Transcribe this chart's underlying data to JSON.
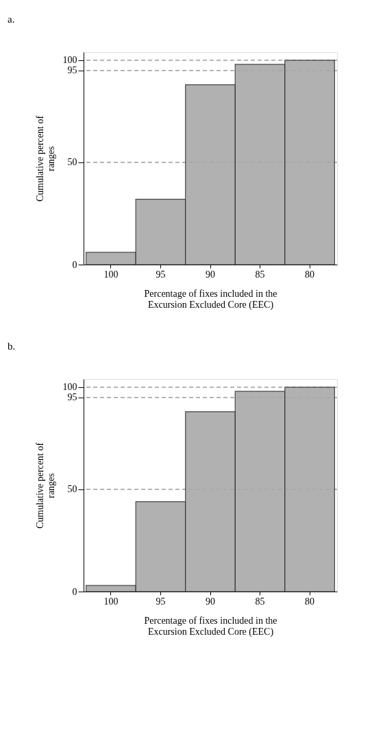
{
  "chart_data": [
    {
      "type": "bar",
      "title": "a.",
      "xlabel": "Percentage of fixes included in the\nExcursion Excluded Core (EEC)",
      "ylabel": "Cumulative percent of\nranges",
      "categories": [
        "100",
        "95",
        "90",
        "85",
        "80"
      ],
      "values": [
        6,
        32,
        88,
        98,
        100
      ],
      "color": "#a9a9a9",
      "ylim": [
        0,
        104
      ],
      "yticks": [
        0,
        50,
        95,
        100
      ],
      "ref_lines": [
        {
          "axis": "y",
          "value": 50,
          "line_style": "dashed",
          "color": "#888888"
        },
        {
          "axis": "y",
          "value": 95,
          "line_style": "dashed",
          "color": "#888888"
        },
        {
          "axis": "y",
          "value": 100,
          "line_style": "dashed",
          "color": "#888888"
        }
      ]
    },
    {
      "type": "bar",
      "title": "b.",
      "xlabel": "Percentage of fixes included in the\nExcursion Excluded Core (EEC)",
      "ylabel": "Cumulative percent of\nranges",
      "categories": [
        "100",
        "95",
        "90",
        "85",
        "80"
      ],
      "values": [
        3,
        44,
        88,
        98,
        100
      ],
      "color": "#a9a9a9",
      "ylim": [
        0,
        104
      ],
      "yticks": [
        0,
        50,
        95,
        100
      ],
      "ref_lines": [
        {
          "axis": "y",
          "value": 50,
          "line_style": "dashed",
          "color": "#888888"
        },
        {
          "axis": "y",
          "value": 95,
          "line_style": "dashed",
          "color": "#888888"
        },
        {
          "axis": "y",
          "value": 100,
          "line_style": "dashed",
          "color": "#888888"
        }
      ]
    }
  ]
}
